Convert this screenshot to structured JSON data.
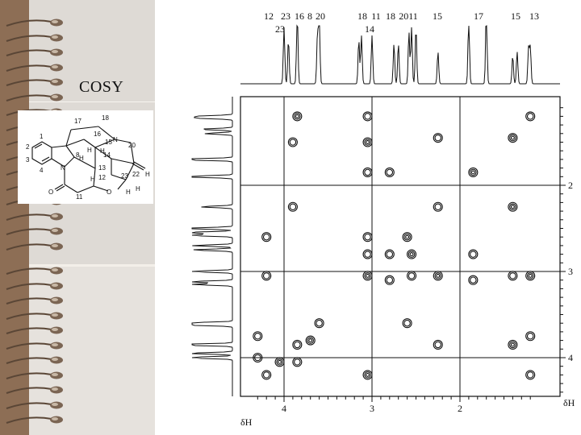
{
  "slide": {
    "title": "COSY"
  },
  "molecule": {
    "atom_labels": [
      "17",
      "18",
      "16",
      "15",
      "20",
      "14",
      "13",
      "8",
      "N",
      "N",
      "H",
      "H",
      "H",
      "H",
      "1",
      "2",
      "3",
      "4",
      "O",
      "11",
      "12",
      "23",
      "22",
      "O",
      "H",
      "H",
      "H"
    ]
  },
  "chart_data": {
    "type": "heatmap",
    "title": "COSY",
    "xaxis": {
      "label": "δH",
      "ticks": [
        4,
        3,
        2
      ],
      "range": [
        4.3,
        1.1
      ],
      "reversed": true
    },
    "yaxis": {
      "label": "δH",
      "ticks": [
        2,
        3,
        4
      ],
      "range": [
        1.1,
        4.5
      ],
      "reversed": false
    },
    "top_labels_row1": [
      "12",
      "23",
      "16",
      "8",
      "20",
      "18",
      "11",
      "18",
      "2011",
      "15",
      "17",
      "15",
      "13"
    ],
    "top_labels_row2": [
      "23",
      "14"
    ],
    "diagonal_peaks_ppm": [
      4.0,
      3.85,
      3.6,
      3.0,
      2.7,
      2.5,
      1.9,
      1.7,
      1.35,
      1.2
    ],
    "cross_peaks_ppm": [
      [
        3.85,
        1.2
      ],
      [
        3.05,
        1.2
      ],
      [
        2.25,
        1.45
      ],
      [
        1.4,
        1.45
      ],
      [
        1.2,
        1.2
      ],
      [
        3.9,
        1.5
      ],
      [
        3.05,
        1.5
      ],
      [
        3.05,
        1.85
      ],
      [
        2.8,
        1.85
      ],
      [
        1.85,
        1.85
      ],
      [
        3.9,
        2.25
      ],
      [
        2.25,
        2.25
      ],
      [
        1.4,
        2.25
      ],
      [
        4.2,
        2.6
      ],
      [
        3.05,
        2.6
      ],
      [
        2.6,
        2.6
      ],
      [
        3.05,
        2.8
      ],
      [
        2.8,
        2.8
      ],
      [
        2.55,
        2.8
      ],
      [
        1.85,
        2.8
      ],
      [
        4.2,
        3.05
      ],
      [
        3.05,
        3.05
      ],
      [
        2.8,
        3.1
      ],
      [
        2.55,
        3.05
      ],
      [
        2.25,
        3.05
      ],
      [
        1.85,
        3.1
      ],
      [
        1.4,
        3.05
      ],
      [
        1.2,
        3.05
      ],
      [
        3.6,
        3.6
      ],
      [
        2.6,
        3.6
      ],
      [
        3.7,
        3.8
      ],
      [
        3.85,
        3.85
      ],
      [
        2.25,
        3.85
      ],
      [
        1.4,
        3.85
      ],
      [
        1.2,
        3.75
      ],
      [
        4.3,
        3.75
      ],
      [
        4.05,
        4.05
      ],
      [
        3.85,
        4.05
      ],
      [
        4.3,
        4.0
      ],
      [
        3.05,
        4.2
      ],
      [
        4.2,
        4.2
      ],
      [
        1.2,
        4.2
      ]
    ]
  }
}
